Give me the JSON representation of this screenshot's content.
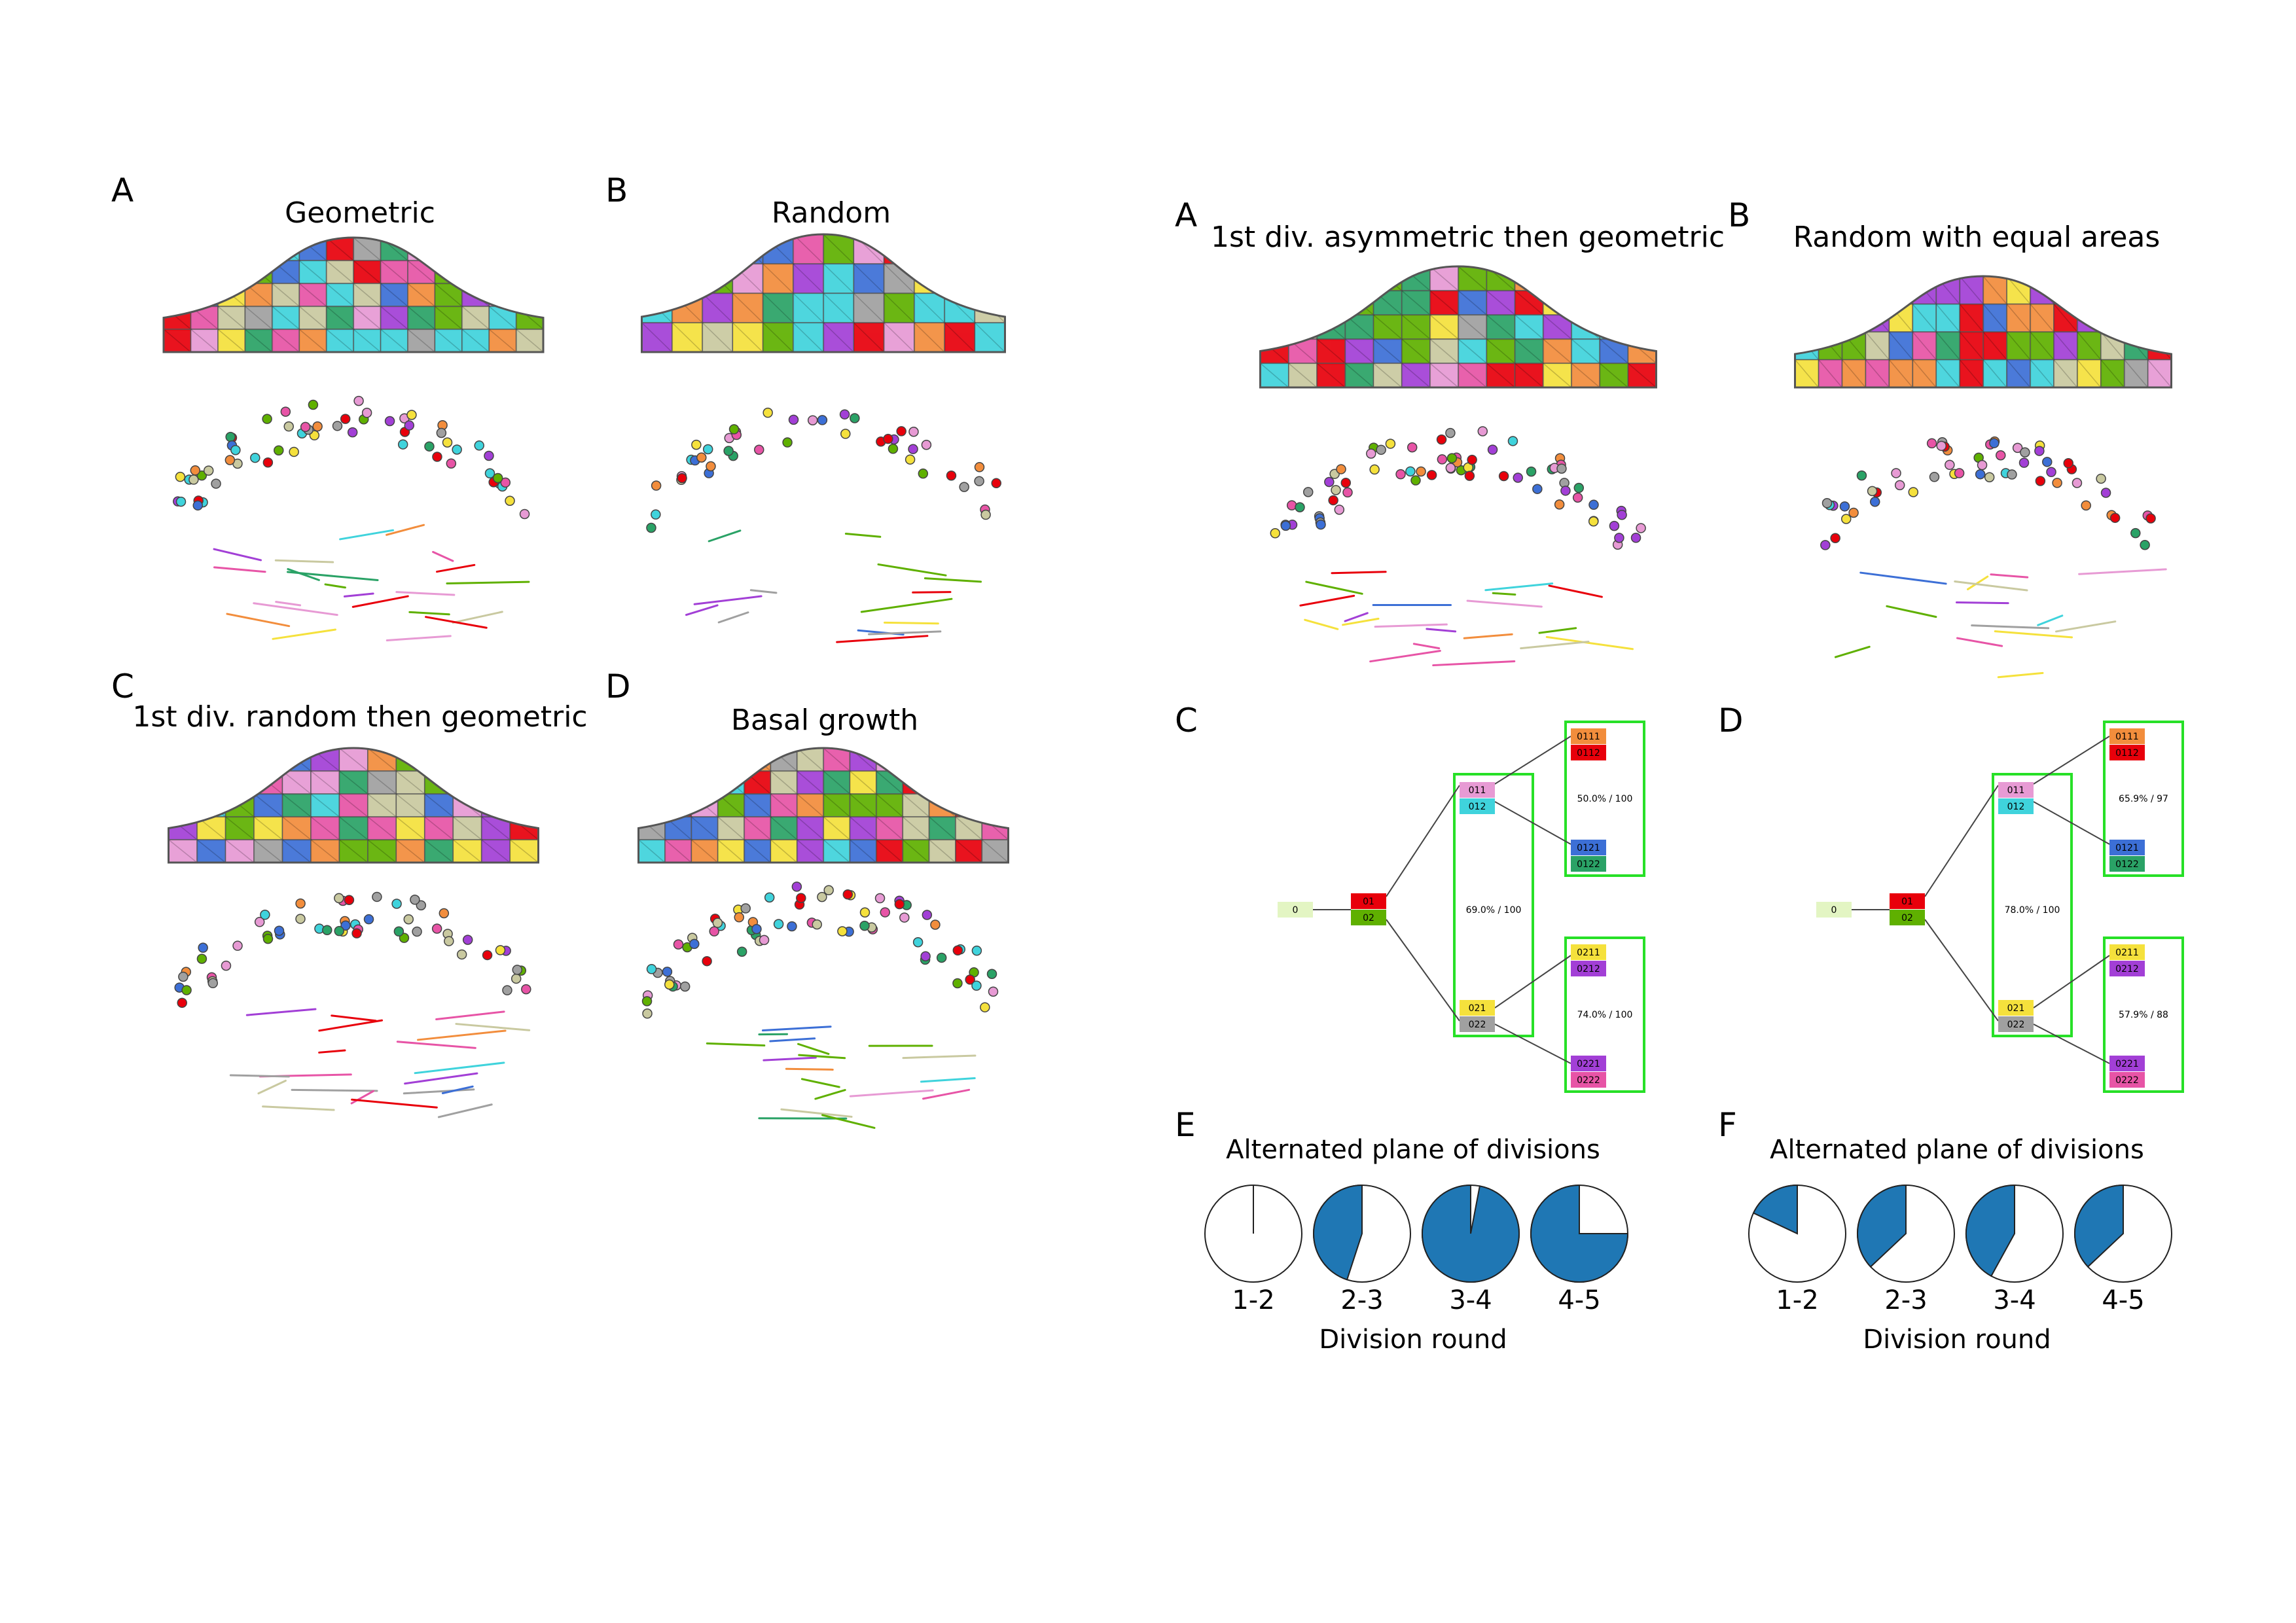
{
  "colors": {
    "red": "#e8000b",
    "green": "#5fb000",
    "khaki": "#c9c9a0",
    "orange": "#f28d3c",
    "pink": "#e79ad4",
    "cyan": "#3fd3dc",
    "blue": "#3c6fd6",
    "teal": "#2aa266",
    "yellow": "#f5e13c",
    "purple": "#a23fd6",
    "gray": "#a0a0a0",
    "magenta": "#e754a6",
    "lightgreen": "#e3f5c3",
    "box_border": "#27e027",
    "pie_fill": "#1f77b4"
  },
  "left_figure": {
    "panels": [
      {
        "letter": "A",
        "title": "Geometric"
      },
      {
        "letter": "B",
        "title": "Random"
      },
      {
        "letter": "C",
        "title": "1st div. random then geometric"
      },
      {
        "letter": "D",
        "title": "Basal growth"
      }
    ]
  },
  "right_figure": {
    "panels": [
      {
        "letter": "A",
        "title": "1st div. asymmetric then geometric"
      },
      {
        "letter": "B",
        "title": "Random with equal areas"
      }
    ],
    "trees": [
      {
        "letter": "C",
        "root": "0",
        "d1": [
          "01",
          "02"
        ],
        "d2a": [
          "011",
          "012"
        ],
        "d2b": [
          "021",
          "022"
        ],
        "d3": [
          "0111",
          "0112",
          "0121",
          "0122",
          "0211",
          "0212",
          "0221",
          "0222"
        ],
        "ann_mid": "69.0% / 100",
        "ann_top": "50.0% / 100",
        "ann_bot": "74.0% / 100"
      },
      {
        "letter": "D",
        "root": "0",
        "d1": [
          "01",
          "02"
        ],
        "d2a": [
          "011",
          "012"
        ],
        "d2b": [
          "021",
          "022"
        ],
        "d3": [
          "0111",
          "0112",
          "0121",
          "0122",
          "0211",
          "0212",
          "0221",
          "0222"
        ],
        "ann_mid": "78.0% / 100",
        "ann_top": "65.9% / 97",
        "ann_bot": "57.9% / 88"
      }
    ],
    "pie_charts": [
      {
        "letter": "E",
        "title": "Alternated plane of divisions",
        "xlabel": "Division round",
        "categories": [
          "1-2",
          "2-3",
          "3-4",
          "4-5"
        ],
        "values": [
          0.0,
          0.45,
          0.97,
          0.75
        ]
      },
      {
        "letter": "F",
        "title": "Alternated plane of divisions",
        "xlabel": "Division round",
        "categories": [
          "1-2",
          "2-3",
          "3-4",
          "4-5"
        ],
        "values": [
          0.18,
          0.37,
          0.42,
          0.37
        ]
      }
    ]
  }
}
